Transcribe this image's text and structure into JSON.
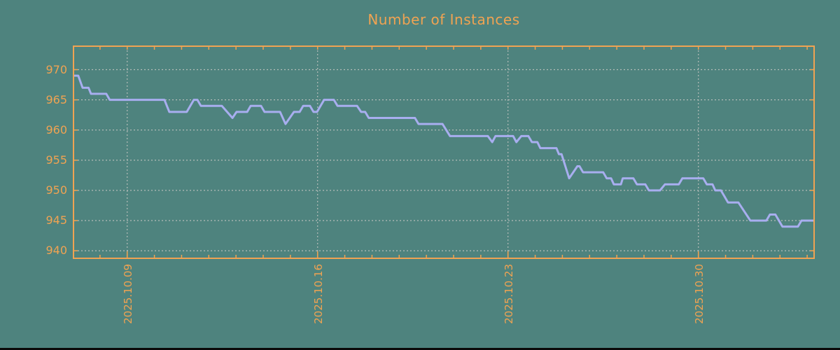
{
  "title": "Number of Instances",
  "colors": {
    "background": "#4e837e",
    "accent_orange": "#f0a352",
    "line_lavender": "#a8aeef",
    "grid_gray": "#b4bcb8",
    "bottom_bar_black": "#0a0a0a"
  },
  "chart_data": {
    "type": "line",
    "title": "Number of Instances",
    "legend": "none",
    "grid": "dotted",
    "x_axis": {
      "description": "time, x measured in days from left edge of plot",
      "range_days": [
        0,
        27.28
      ],
      "minor_tick_interval_days": 1,
      "ticks": [
        {
          "day": 2,
          "label": "2025.10.09"
        },
        {
          "day": 9,
          "label": "2025.10.16"
        },
        {
          "day": 16,
          "label": "2025.10.23"
        },
        {
          "day": 23,
          "label": "2025.10.30"
        }
      ]
    },
    "y_axis": {
      "range": [
        938.8,
        974.0
      ],
      "ticks": [
        940,
        945,
        950,
        955,
        960,
        965,
        970
      ]
    },
    "series": [
      {
        "name": "instances",
        "points": [
          [
            0.0,
            969
          ],
          [
            0.2,
            969
          ],
          [
            0.36,
            967
          ],
          [
            0.58,
            967
          ],
          [
            0.67,
            966
          ],
          [
            1.23,
            966
          ],
          [
            1.36,
            965
          ],
          [
            3.37,
            965
          ],
          [
            3.55,
            963
          ],
          [
            4.19,
            963
          ],
          [
            4.45,
            965
          ],
          [
            4.58,
            965
          ],
          [
            4.71,
            964
          ],
          [
            5.48,
            964
          ],
          [
            5.87,
            962
          ],
          [
            6.02,
            963
          ],
          [
            6.41,
            963
          ],
          [
            6.54,
            964
          ],
          [
            6.92,
            964
          ],
          [
            7.05,
            963
          ],
          [
            7.62,
            963
          ],
          [
            7.82,
            961
          ],
          [
            8.13,
            963
          ],
          [
            8.34,
            963
          ],
          [
            8.47,
            964
          ],
          [
            8.72,
            964
          ],
          [
            8.85,
            963
          ],
          [
            8.98,
            963
          ],
          [
            9.24,
            965
          ],
          [
            9.6,
            965
          ],
          [
            9.73,
            964
          ],
          [
            10.45,
            964
          ],
          [
            10.6,
            963
          ],
          [
            10.75,
            963
          ],
          [
            10.88,
            962
          ],
          [
            12.58,
            962
          ],
          [
            12.71,
            961
          ],
          [
            13.59,
            961
          ],
          [
            13.87,
            959
          ],
          [
            15.26,
            959
          ],
          [
            15.42,
            958
          ],
          [
            15.54,
            959
          ],
          [
            16.19,
            959
          ],
          [
            16.31,
            958
          ],
          [
            16.49,
            959
          ],
          [
            16.75,
            959
          ],
          [
            16.88,
            958
          ],
          [
            17.08,
            958
          ],
          [
            17.19,
            957
          ],
          [
            17.78,
            957
          ],
          [
            17.87,
            956
          ],
          [
            17.97,
            956
          ],
          [
            18.25,
            952
          ],
          [
            18.55,
            954
          ],
          [
            18.63,
            954
          ],
          [
            18.76,
            953
          ],
          [
            19.5,
            953
          ],
          [
            19.63,
            952
          ],
          [
            19.79,
            952
          ],
          [
            19.89,
            951
          ],
          [
            20.15,
            951
          ],
          [
            20.22,
            952
          ],
          [
            20.61,
            952
          ],
          [
            20.74,
            951
          ],
          [
            21.05,
            951
          ],
          [
            21.18,
            950
          ],
          [
            21.59,
            950
          ],
          [
            21.77,
            951
          ],
          [
            22.28,
            951
          ],
          [
            22.41,
            952
          ],
          [
            23.18,
            952
          ],
          [
            23.31,
            951
          ],
          [
            23.52,
            951
          ],
          [
            23.62,
            950
          ],
          [
            23.83,
            950
          ],
          [
            23.96,
            949
          ],
          [
            24.09,
            948
          ],
          [
            24.47,
            948
          ],
          [
            24.91,
            945
          ],
          [
            25.5,
            945
          ],
          [
            25.63,
            946
          ],
          [
            25.83,
            946
          ],
          [
            26.09,
            944
          ],
          [
            26.66,
            944
          ],
          [
            26.79,
            945
          ],
          [
            27.28,
            945
          ]
        ]
      }
    ]
  }
}
